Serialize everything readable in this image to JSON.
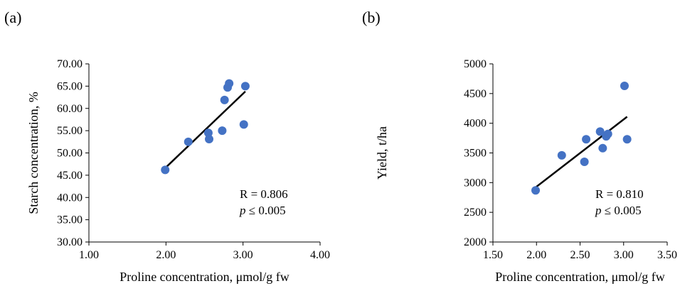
{
  "chart_data": [
    {
      "panel_label": "(a)",
      "type": "scatter",
      "title": "",
      "xlabel": "Proline concentration, μmol/g fw",
      "ylabel": "Starch concentration, %",
      "xlim": [
        1.0,
        4.0
      ],
      "ylim": [
        30.0,
        70.0
      ],
      "xticks": [
        "1.00",
        "2.00",
        "3.00",
        "4.00"
      ],
      "yticks": [
        "30.00",
        "35.00",
        "40.00",
        "45.00",
        "50.00",
        "55.00",
        "60.00",
        "65.00",
        "70.00"
      ],
      "grid": false,
      "legend": "none",
      "marker_color": "#4472c4",
      "trendline_color": "#000000",
      "points": [
        {
          "x": 1.99,
          "y": 46.2
        },
        {
          "x": 2.29,
          "y": 52.5
        },
        {
          "x": 2.55,
          "y": 54.5
        },
        {
          "x": 2.56,
          "y": 53.1
        },
        {
          "x": 2.73,
          "y": 55.0
        },
        {
          "x": 2.76,
          "y": 61.9
        },
        {
          "x": 2.8,
          "y": 64.7
        },
        {
          "x": 2.82,
          "y": 65.6
        },
        {
          "x": 3.01,
          "y": 56.4
        },
        {
          "x": 3.03,
          "y": 65.0
        }
      ],
      "trendline": {
        "x": [
          1.99,
          3.03
        ],
        "y": [
          46.6,
          63.8
        ]
      },
      "annotation": {
        "r_text": "R = 0.806",
        "p_symbol": "p",
        "p_rest": " ≤ 0.005"
      }
    },
    {
      "panel_label": "(b)",
      "type": "scatter",
      "title": "",
      "xlabel": "Proline concentration, μmol/g fw",
      "ylabel": "Yield, t/ha",
      "xlim": [
        1.5,
        3.5
      ],
      "ylim": [
        2000,
        5000
      ],
      "xticks": [
        "1.50",
        "2.00",
        "2.50",
        "3.00",
        "3.50"
      ],
      "yticks": [
        "2000",
        "2500",
        "3000",
        "3500",
        "4000",
        "4500",
        "5000"
      ],
      "grid": false,
      "legend": "none",
      "marker_color": "#4472c4",
      "trendline_color": "#000000",
      "points": [
        {
          "x": 1.99,
          "y": 2870
        },
        {
          "x": 2.29,
          "y": 3460
        },
        {
          "x": 2.55,
          "y": 3350
        },
        {
          "x": 2.57,
          "y": 3730
        },
        {
          "x": 2.73,
          "y": 3860
        },
        {
          "x": 2.76,
          "y": 3580
        },
        {
          "x": 2.8,
          "y": 3780
        },
        {
          "x": 2.82,
          "y": 3820
        },
        {
          "x": 3.01,
          "y": 4630
        },
        {
          "x": 3.04,
          "y": 3730
        }
      ],
      "trendline": {
        "x": [
          1.99,
          3.04
        ],
        "y": [
          2920,
          4110
        ]
      },
      "annotation": {
        "r_text": "R = 0.810",
        "p_symbol": "p",
        "p_rest": " ≤ 0.005"
      }
    }
  ]
}
